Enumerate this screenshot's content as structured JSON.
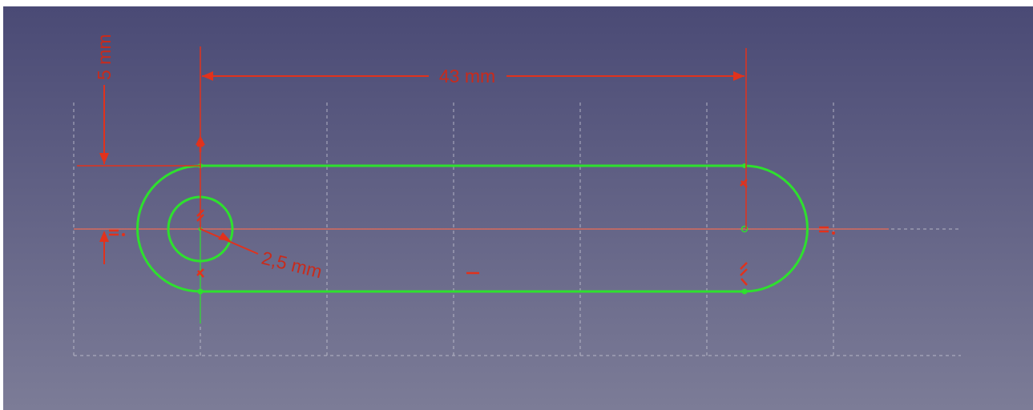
{
  "viewport": {
    "background_top": "#4a4a75",
    "background_bottom": "#7c7c97",
    "geometry_color": "#2ee02e",
    "constraint_color": "#e1321c",
    "axis_color": "#d86b5c",
    "grid_color": "#c8c8d4"
  },
  "dimensions": {
    "length": "43 mm",
    "offset": "5 mm",
    "radius": "2,5 mm"
  },
  "constraint_symbols": {
    "horizontal": "—",
    "equal": "="
  }
}
